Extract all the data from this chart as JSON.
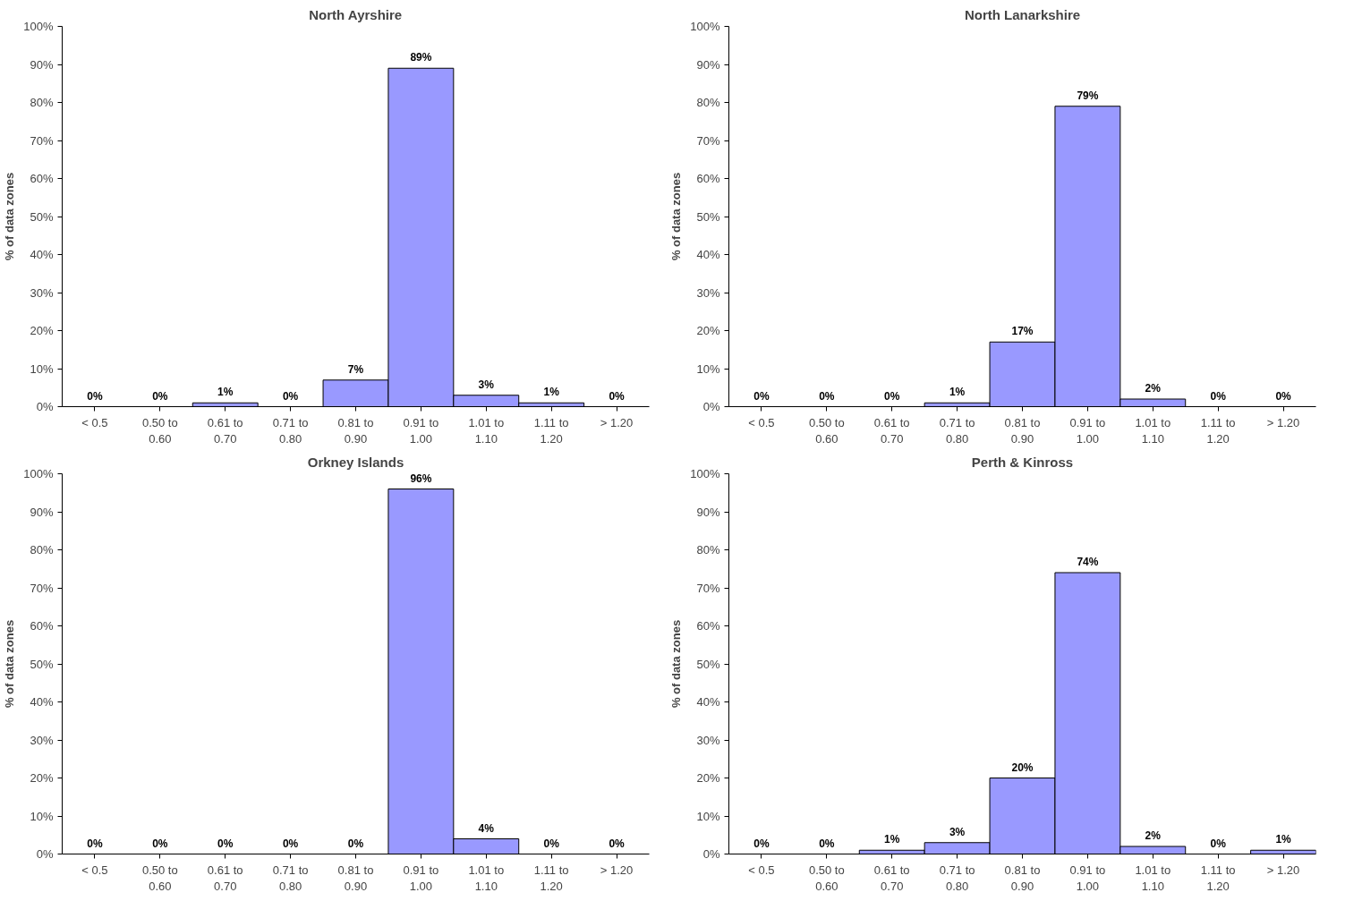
{
  "chart_data": [
    {
      "type": "bar",
      "title": "North Ayrshire",
      "ylabel": "% of data zones",
      "categories": [
        "< 0.5",
        "0.50 to 0.60",
        "0.61 to 0.70",
        "0.71 to 0.80",
        "0.81 to 0.90",
        "0.91 to 1.00",
        "1.01 to 1.10",
        "1.11 to 1.20",
        "> 1.20"
      ],
      "series": [
        {
          "color": "#9999ff",
          "values": [
            0,
            0,
            1,
            0,
            7,
            89,
            3,
            1,
            0
          ],
          "value_labels": [
            "0%",
            "0%",
            "1%",
            "0%",
            "7%",
            "89%",
            "3%",
            "1%",
            "0%"
          ]
        }
      ],
      "ylim": [
        0,
        100
      ],
      "yticks": [
        {
          "value": 0,
          "label": "0%"
        },
        {
          "value": 10,
          "label": "10%"
        },
        {
          "value": 20,
          "label": "20%"
        },
        {
          "value": 30,
          "label": "30%"
        },
        {
          "value": 40,
          "label": "40%"
        },
        {
          "value": 50,
          "label": "50%"
        },
        {
          "value": 60,
          "label": "60%"
        },
        {
          "value": 70,
          "label": "70%"
        },
        {
          "value": 80,
          "label": "80%"
        },
        {
          "value": 90,
          "label": "90%"
        },
        {
          "value": 100,
          "label": "100%"
        }
      ],
      "grid": false
    },
    {
      "type": "bar",
      "title": "North Lanarkshire",
      "ylabel": "% of data zones",
      "categories": [
        "< 0.5",
        "0.50 to 0.60",
        "0.61 to 0.70",
        "0.71 to 0.80",
        "0.81 to 0.90",
        "0.91 to 1.00",
        "1.01 to 1.10",
        "1.11 to 1.20",
        "> 1.20"
      ],
      "series": [
        {
          "color": "#9999ff",
          "values": [
            0,
            0,
            0,
            1,
            17,
            79,
            2,
            0,
            0
          ],
          "value_labels": [
            "0%",
            "0%",
            "0%",
            "1%",
            "17%",
            "79%",
            "2%",
            "0%",
            "0%"
          ]
        }
      ],
      "ylim": [
        0,
        100
      ],
      "yticks": [
        {
          "value": 0,
          "label": "0%"
        },
        {
          "value": 10,
          "label": "10%"
        },
        {
          "value": 20,
          "label": "20%"
        },
        {
          "value": 30,
          "label": "30%"
        },
        {
          "value": 40,
          "label": "40%"
        },
        {
          "value": 50,
          "label": "50%"
        },
        {
          "value": 60,
          "label": "60%"
        },
        {
          "value": 70,
          "label": "70%"
        },
        {
          "value": 80,
          "label": "80%"
        },
        {
          "value": 90,
          "label": "90%"
        },
        {
          "value": 100,
          "label": "100%"
        }
      ],
      "grid": false
    },
    {
      "type": "bar",
      "title": "Orkney Islands",
      "ylabel": "% of data zones",
      "categories": [
        "< 0.5",
        "0.50 to 0.60",
        "0.61 to 0.70",
        "0.71 to 0.80",
        "0.81 to 0.90",
        "0.91 to 1.00",
        "1.01 to 1.10",
        "1.11 to 1.20",
        "> 1.20"
      ],
      "series": [
        {
          "color": "#9999ff",
          "values": [
            0,
            0,
            0,
            0,
            0,
            96,
            4,
            0,
            0
          ],
          "value_labels": [
            "0%",
            "0%",
            "0%",
            "0%",
            "0%",
            "96%",
            "4%",
            "0%",
            "0%"
          ]
        }
      ],
      "ylim": [
        0,
        100
      ],
      "yticks": [
        {
          "value": 0,
          "label": "0%"
        },
        {
          "value": 10,
          "label": "10%"
        },
        {
          "value": 20,
          "label": "20%"
        },
        {
          "value": 30,
          "label": "30%"
        },
        {
          "value": 40,
          "label": "40%"
        },
        {
          "value": 50,
          "label": "50%"
        },
        {
          "value": 60,
          "label": "60%"
        },
        {
          "value": 70,
          "label": "70%"
        },
        {
          "value": 80,
          "label": "80%"
        },
        {
          "value": 90,
          "label": "90%"
        },
        {
          "value": 100,
          "label": "100%"
        }
      ],
      "grid": false
    },
    {
      "type": "bar",
      "title": "Perth & Kinross",
      "ylabel": "% of data zones",
      "categories": [
        "< 0.5",
        "0.50 to 0.60",
        "0.61 to 0.70",
        "0.71 to 0.80",
        "0.81 to 0.90",
        "0.91 to 1.00",
        "1.01 to 1.10",
        "1.11 to 1.20",
        "> 1.20"
      ],
      "series": [
        {
          "color": "#9999ff",
          "values": [
            0,
            0,
            1,
            3,
            20,
            74,
            2,
            0,
            1
          ],
          "value_labels": [
            "0%",
            "0%",
            "1%",
            "3%",
            "20%",
            "74%",
            "2%",
            "0%",
            "1%"
          ]
        }
      ],
      "ylim": [
        0,
        100
      ],
      "yticks": [
        {
          "value": 0,
          "label": "0%"
        },
        {
          "value": 10,
          "label": "10%"
        },
        {
          "value": 20,
          "label": "20%"
        },
        {
          "value": 30,
          "label": "30%"
        },
        {
          "value": 40,
          "label": "40%"
        },
        {
          "value": 50,
          "label": "50%"
        },
        {
          "value": 60,
          "label": "60%"
        },
        {
          "value": 70,
          "label": "70%"
        },
        {
          "value": 80,
          "label": "80%"
        },
        {
          "value": 90,
          "label": "90%"
        },
        {
          "value": 100,
          "label": "100%"
        }
      ],
      "grid": false
    }
  ]
}
